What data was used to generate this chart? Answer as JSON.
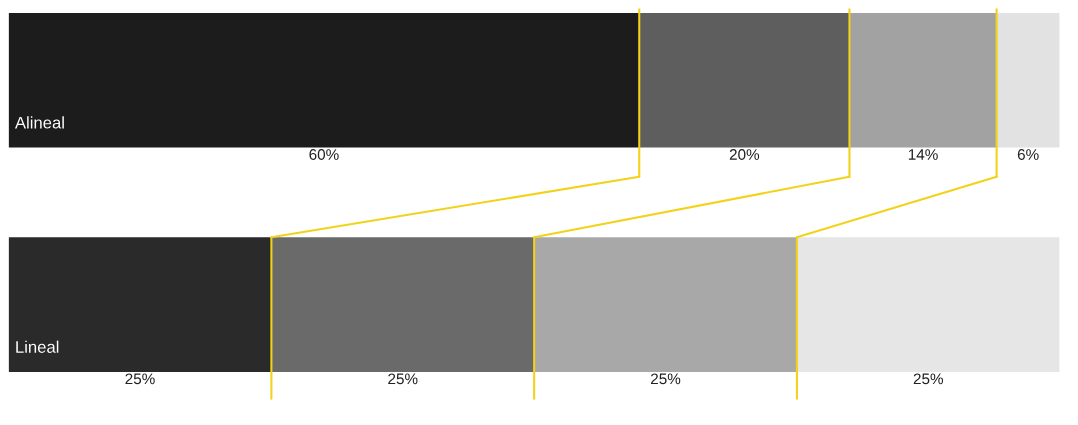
{
  "chart_data": {
    "type": "bar",
    "orientation": "horizontal",
    "stacked": true,
    "categories": [
      "Alineal",
      "Lineal"
    ],
    "series": [
      {
        "colors": [
          "#1c1c1c",
          "#2a2a2a"
        ],
        "values": [
          60,
          25
        ],
        "value_labels": [
          "60%",
          "25%"
        ]
      },
      {
        "colors": [
          "#5e5e5e",
          "#6a6a6a"
        ],
        "values": [
          20,
          25
        ],
        "value_labels": [
          "20%",
          "25%"
        ]
      },
      {
        "colors": [
          "#a2a2a2",
          "#a8a8a8"
        ],
        "values": [
          14,
          25
        ],
        "value_labels": [
          "14%",
          "25%"
        ]
      },
      {
        "colors": [
          "#e2e2e2",
          "#e6e6e6"
        ],
        "values": [
          6,
          25
        ],
        "value_labels": [
          "6%",
          "25%"
        ]
      }
    ]
  }
}
